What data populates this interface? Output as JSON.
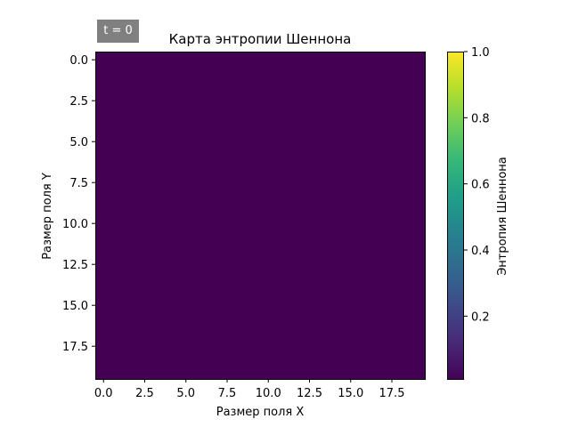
{
  "badge": {
    "text": "t = 0"
  },
  "chart_data": {
    "type": "heatmap",
    "title": "Карта энтропии Шеннона",
    "xlabel": "Размер поля X",
    "ylabel": "Размер поля Y",
    "grid_size": [
      20,
      20
    ],
    "xlim": [
      -0.5,
      19.5
    ],
    "ylim": [
      19.5,
      -0.5
    ],
    "x_ticks": [
      0.0,
      2.5,
      5.0,
      7.5,
      10.0,
      12.5,
      15.0,
      17.5
    ],
    "x_tick_labels": [
      "0.0",
      "2.5",
      "5.0",
      "7.5",
      "10.0",
      "12.5",
      "15.0",
      "17.5"
    ],
    "y_ticks": [
      0.0,
      2.5,
      5.0,
      7.5,
      10.0,
      12.5,
      15.0,
      17.5
    ],
    "y_tick_labels": [
      "0.0",
      "2.5",
      "5.0",
      "7.5",
      "10.0",
      "12.5",
      "15.0",
      "17.5"
    ],
    "fill_value": 0,
    "colormap": "viridis",
    "colorbar": {
      "label": "Энтропия Шеннона",
      "range": [
        0.01,
        1.0
      ],
      "ticks": [
        0.2,
        0.4,
        0.6,
        0.8,
        1.0
      ],
      "tick_labels": [
        "0.2",
        "0.4",
        "0.6",
        "0.8",
        "1.0"
      ]
    },
    "colors": {
      "fill": "#440154",
      "viridis_stops": [
        "#440154",
        "#482878",
        "#3e4989",
        "#31688e",
        "#26828e",
        "#1f9e89",
        "#35b779",
        "#6ece58",
        "#b5de2b",
        "#fde725"
      ]
    }
  }
}
